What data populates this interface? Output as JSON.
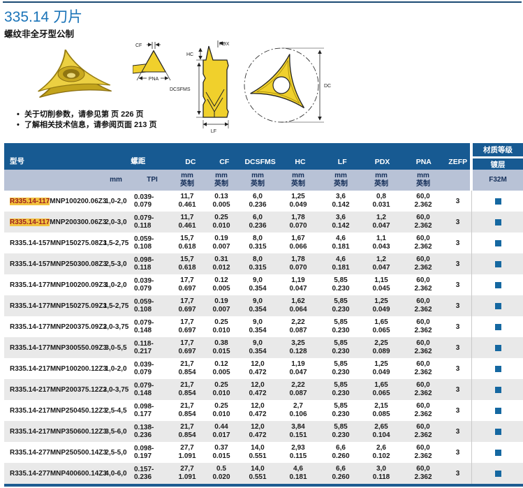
{
  "header": {
    "title": "335.14 刀片",
    "subtitle": "螺纹非全牙型公制"
  },
  "notes": {
    "note1": "关于切削参数，请参见第 页 226 页",
    "note2": "了解相关技术信息，请参阅页面 213 页"
  },
  "figure_labels": {
    "cf": "CF",
    "pna": "PNA",
    "pdx": "PDX",
    "hc": "HC",
    "dcsfms": "DCSFMS",
    "lf": "LF",
    "dc": "DC"
  },
  "colors": {
    "header_blue": "#175a92",
    "subheader_blue": "#b8c2d6",
    "row_alt": "#e9e9e9",
    "grade_square": "#1568a1",
    "highlight_bg": "#f2c13d",
    "highlight_text": "#9c1f1f",
    "title_blue": "#1b74b8",
    "insert_yellow": "#f0d02c"
  },
  "table": {
    "columns": {
      "model": "型号",
      "pitch": "螺距",
      "dc": "DC",
      "cf": "CF",
      "dcsfms": "DCSFMS",
      "hc": "HC",
      "lf": "LF",
      "pdx": "PDX",
      "pna": "PNA",
      "zefp": "ZEFP",
      "grade_group": "材质等级",
      "coating": "镀层"
    },
    "units": {
      "mm": "mm",
      "tpi": "TPI",
      "metric": "mm",
      "inch": "英制",
      "grade": "F32M"
    },
    "rows": [
      {
        "model_prefix": "R335.14-117",
        "model_rest": "MNP100200.06Z3",
        "highlight": true,
        "pitch_mm": "1,0-2,0",
        "tpi": "0.039-0.079",
        "dims": [
          [
            "11,7",
            "0.461"
          ],
          [
            "0.13",
            "0.005"
          ],
          [
            "6,0",
            "0.236"
          ],
          [
            "1,25",
            "0.049"
          ],
          [
            "3,6",
            "0.142"
          ],
          [
            "0,8",
            "0.031"
          ],
          [
            "60,0",
            "2.362"
          ]
        ],
        "zefp": "3"
      },
      {
        "model_prefix": "R335.14-117",
        "model_rest": "MNP200300.06Z3",
        "highlight": true,
        "pitch_mm": "2,0-3,0",
        "tpi": "0.079-0.118",
        "dims": [
          [
            "11,7",
            "0.461"
          ],
          [
            "0.25",
            "0.010"
          ],
          [
            "6,0",
            "0.236"
          ],
          [
            "1,78",
            "0.070"
          ],
          [
            "3,6",
            "0.142"
          ],
          [
            "1,2",
            "0.047"
          ],
          [
            "60,0",
            "2.362"
          ]
        ],
        "zefp": "3"
      },
      {
        "model_prefix": "R335.14-157",
        "model_rest": "MNP150275.08Z3",
        "highlight": false,
        "pitch_mm": "1,5-2,75",
        "tpi": "0.059-0.108",
        "dims": [
          [
            "15,7",
            "0.618"
          ],
          [
            "0.19",
            "0.007"
          ],
          [
            "8,0",
            "0.315"
          ],
          [
            "1,67",
            "0.066"
          ],
          [
            "4,6",
            "0.181"
          ],
          [
            "1,1",
            "0.043"
          ],
          [
            "60,0",
            "2.362"
          ]
        ],
        "zefp": "3"
      },
      {
        "model_prefix": "R335.14-157",
        "model_rest": "MNP250300.08Z3",
        "highlight": false,
        "pitch_mm": "2,5-3,0",
        "tpi": "0.098-0.118",
        "dims": [
          [
            "15,7",
            "0.618"
          ],
          [
            "0.31",
            "0.012"
          ],
          [
            "8,0",
            "0.315"
          ],
          [
            "1,78",
            "0.070"
          ],
          [
            "4,6",
            "0.181"
          ],
          [
            "1,2",
            "0.047"
          ],
          [
            "60,0",
            "2.362"
          ]
        ],
        "zefp": "3"
      },
      {
        "model_prefix": "R335.14-177",
        "model_rest": "MNP100200.09Z3",
        "highlight": false,
        "pitch_mm": "1,0-2,0",
        "tpi": "0.039-0.079",
        "dims": [
          [
            "17,7",
            "0.697"
          ],
          [
            "0.12",
            "0.005"
          ],
          [
            "9,0",
            "0.354"
          ],
          [
            "1,19",
            "0.047"
          ],
          [
            "5,85",
            "0.230"
          ],
          [
            "1,15",
            "0.045"
          ],
          [
            "60,0",
            "2.362"
          ]
        ],
        "zefp": "3"
      },
      {
        "model_prefix": "R335.14-177",
        "model_rest": "MNP150275.09Z3",
        "highlight": false,
        "pitch_mm": "1,5-2,75",
        "tpi": "0.059-0.108",
        "dims": [
          [
            "17,7",
            "0.697"
          ],
          [
            "0.19",
            "0.007"
          ],
          [
            "9,0",
            "0.354"
          ],
          [
            "1,62",
            "0.064"
          ],
          [
            "5,85",
            "0.230"
          ],
          [
            "1,25",
            "0.049"
          ],
          [
            "60,0",
            "2.362"
          ]
        ],
        "zefp": "3"
      },
      {
        "model_prefix": "R335.14-177",
        "model_rest": "MNP200375.09Z3",
        "highlight": false,
        "pitch_mm": "2,0-3,75",
        "tpi": "0.079-0.148",
        "dims": [
          [
            "17,7",
            "0.697"
          ],
          [
            "0.25",
            "0.010"
          ],
          [
            "9,0",
            "0.354"
          ],
          [
            "2,22",
            "0.087"
          ],
          [
            "5,85",
            "0.230"
          ],
          [
            "1,65",
            "0.065"
          ],
          [
            "60,0",
            "2.362"
          ]
        ],
        "zefp": "3"
      },
      {
        "model_prefix": "R335.14-177",
        "model_rest": "MNP300550.09Z3",
        "highlight": false,
        "pitch_mm": "3,0-5,5",
        "tpi": "0.118-0.217",
        "dims": [
          [
            "17,7",
            "0.697"
          ],
          [
            "0.38",
            "0.015"
          ],
          [
            "9,0",
            "0.354"
          ],
          [
            "3,25",
            "0.128"
          ],
          [
            "5,85",
            "0.230"
          ],
          [
            "2,25",
            "0.089"
          ],
          [
            "60,0",
            "2.362"
          ]
        ],
        "zefp": "3"
      },
      {
        "model_prefix": "R335.14-217",
        "model_rest": "MNP100200.12Z3",
        "highlight": false,
        "pitch_mm": "1,0-2,0",
        "tpi": "0.039-0.079",
        "dims": [
          [
            "21,7",
            "0.854"
          ],
          [
            "0.12",
            "0.005"
          ],
          [
            "12,0",
            "0.472"
          ],
          [
            "1,19",
            "0.047"
          ],
          [
            "5,85",
            "0.230"
          ],
          [
            "1,25",
            "0.049"
          ],
          [
            "60,0",
            "2.362"
          ]
        ],
        "zefp": "3"
      },
      {
        "model_prefix": "R335.14-217",
        "model_rest": "MNP200375.12Z3",
        "highlight": false,
        "pitch_mm": "2,0-3,75",
        "tpi": "0.079-0.148",
        "dims": [
          [
            "21,7",
            "0.854"
          ],
          [
            "0.25",
            "0.010"
          ],
          [
            "12,0",
            "0.472"
          ],
          [
            "2,22",
            "0.087"
          ],
          [
            "5,85",
            "0.230"
          ],
          [
            "1,65",
            "0.065"
          ],
          [
            "60,0",
            "2.362"
          ]
        ],
        "zefp": "3"
      },
      {
        "model_prefix": "R335.14-217",
        "model_rest": "MNP250450.12Z3",
        "highlight": false,
        "pitch_mm": "2,5-4,5",
        "tpi": "0.098-0.177",
        "dims": [
          [
            "21,7",
            "0.854"
          ],
          [
            "0.25",
            "0.010"
          ],
          [
            "12,0",
            "0.472"
          ],
          [
            "2,7",
            "0.106"
          ],
          [
            "5,85",
            "0.230"
          ],
          [
            "2,15",
            "0.085"
          ],
          [
            "60,0",
            "2.362"
          ]
        ],
        "zefp": "3"
      },
      {
        "model_prefix": "R335.14-217",
        "model_rest": "MNP350600.12Z3",
        "highlight": false,
        "pitch_mm": "3,5-6,0",
        "tpi": "0.138-0.236",
        "dims": [
          [
            "21,7",
            "0.854"
          ],
          [
            "0.44",
            "0.017"
          ],
          [
            "12,0",
            "0.472"
          ],
          [
            "3,84",
            "0.151"
          ],
          [
            "5,85",
            "0.230"
          ],
          [
            "2,65",
            "0.104"
          ],
          [
            "60,0",
            "2.362"
          ]
        ],
        "zefp": "3"
      },
      {
        "model_prefix": "R335.14-277",
        "model_rest": "MNP250500.14Z3",
        "highlight": false,
        "pitch_mm": "2,5-5,0",
        "tpi": "0.098-0.197",
        "dims": [
          [
            "27,7",
            "1.091"
          ],
          [
            "0.37",
            "0.015"
          ],
          [
            "14,0",
            "0.551"
          ],
          [
            "2,93",
            "0.115"
          ],
          [
            "6,6",
            "0.260"
          ],
          [
            "2,6",
            "0.102"
          ],
          [
            "60,0",
            "2.362"
          ]
        ],
        "zefp": "3"
      },
      {
        "model_prefix": "R335.14-277",
        "model_rest": "MNP400600.14Z3",
        "highlight": false,
        "pitch_mm": "4,0-6,0",
        "tpi": "0.157-0.236",
        "dims": [
          [
            "27,7",
            "1.091"
          ],
          [
            "0.5",
            "0.020"
          ],
          [
            "14,0",
            "0.551"
          ],
          [
            "4,6",
            "0.181"
          ],
          [
            "6,6",
            "0.260"
          ],
          [
            "3,0",
            "0.118"
          ],
          [
            "60,0",
            "2.362"
          ]
        ],
        "zefp": "3"
      }
    ]
  }
}
